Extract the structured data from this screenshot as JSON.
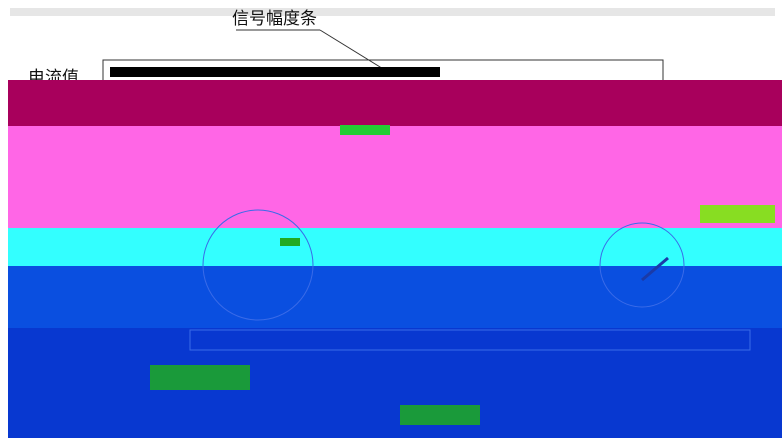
{
  "annotations": {
    "signal_bar_label": "信号幅度条",
    "current_label": "电流值"
  }
}
